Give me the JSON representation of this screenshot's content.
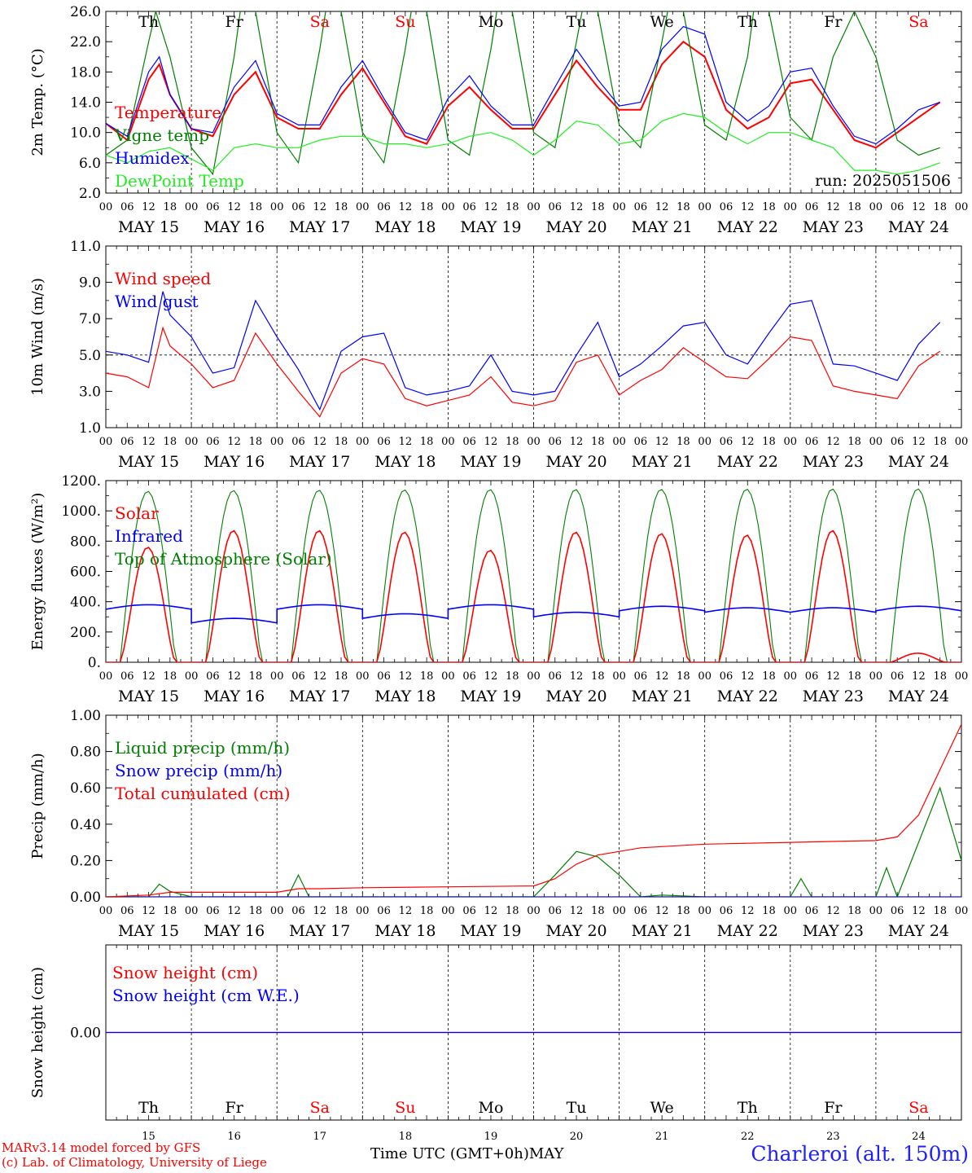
{
  "location": "Charleroi (alt. 150m)",
  "credits": [
    "MARv3.14 model forced by GFS",
    "(c) Lab. of Climatology, University of Liege"
  ],
  "time_axis": {
    "title": "Time UTC (GMT+0h)",
    "month": "MAY",
    "hour_labels": [
      "00",
      "06",
      "12",
      "18"
    ],
    "day_dates": [
      "MAY 15",
      "MAY 16",
      "MAY 17",
      "MAY 18",
      "MAY 19",
      "MAY 20",
      "MAY 21",
      "MAY 22",
      "MAY 23",
      "MAY 24"
    ],
    "day_names": [
      "Th",
      "Fr",
      "Sa",
      "Su",
      "Mo",
      "Tu",
      "We",
      "Th",
      "Fr",
      "Sa"
    ],
    "day_numbers": [
      "15",
      "16",
      "17",
      "18",
      "19",
      "20",
      "21",
      "22",
      "23",
      "24"
    ],
    "weekend_color": "#ff0000"
  },
  "chart_data": [
    {
      "type": "line",
      "ylabel": "2m Temp. (°C)",
      "ylim": [
        2,
        26
      ],
      "yticks": [
        "2.0",
        "6.0",
        "10.0",
        "14.0",
        "18.0",
        "22.0",
        "26.0"
      ],
      "run_label": "run: 2025051506",
      "x_unit": "hours since May 15 00 UTC",
      "series": [
        {
          "name": "Temperature",
          "color": "#ff0000",
          "x": [
            0,
            6,
            12,
            15,
            18,
            24,
            30,
            36,
            42,
            48,
            54,
            60,
            66,
            72,
            78,
            84,
            90,
            96,
            102,
            108,
            114,
            120,
            126,
            132,
            138,
            144,
            150,
            156,
            162,
            168,
            174,
            180,
            186,
            192,
            198,
            204,
            210,
            216,
            222,
            228,
            234
          ],
          "y": [
            11.2,
            9,
            17,
            19,
            15,
            10.5,
            9.5,
            15,
            18,
            12,
            10.5,
            10.5,
            15,
            18.5,
            14,
            9.5,
            8.5,
            13.5,
            16,
            13,
            10.5,
            10.5,
            15,
            19.5,
            16,
            13,
            13,
            19,
            22,
            20,
            13,
            10.5,
            12,
            16.5,
            17,
            13,
            9,
            8,
            10,
            12,
            14
          ]
        },
        {
          "name": "Vigne temp",
          "color": "#008000",
          "x": [
            0,
            6,
            12,
            14,
            18,
            24,
            30,
            36,
            38,
            42,
            48,
            54,
            60,
            62,
            66,
            72,
            78,
            84,
            86,
            90,
            96,
            102,
            108,
            110,
            114,
            120,
            126,
            132,
            134,
            138,
            144,
            150,
            156,
            158,
            162,
            168,
            174,
            180,
            182,
            186,
            192,
            198,
            204,
            210,
            216,
            222,
            228,
            234
          ],
          "y": [
            7,
            9,
            22,
            26,
            20,
            8,
            4.5,
            20,
            27,
            26,
            10,
            6,
            21,
            27,
            26,
            10,
            6,
            21,
            27,
            26,
            9,
            7,
            21,
            27,
            26,
            10,
            8,
            22,
            27,
            26,
            11,
            8,
            22,
            27,
            26,
            11,
            9,
            20,
            27,
            26,
            12,
            9,
            20,
            26,
            20,
            9,
            7,
            8
          ]
        },
        {
          "name": "Humidex",
          "color": "#0000ff",
          "x": [
            0,
            6,
            12,
            15,
            18,
            24,
            30,
            36,
            42,
            48,
            54,
            60,
            66,
            72,
            78,
            84,
            90,
            96,
            102,
            108,
            114,
            120,
            126,
            132,
            138,
            144,
            150,
            156,
            162,
            168,
            174,
            180,
            186,
            192,
            198,
            204,
            210,
            216,
            222,
            228,
            234
          ],
          "y": [
            11.2,
            9.5,
            18,
            20,
            15,
            10.5,
            10,
            16,
            19.5,
            12.5,
            11,
            11,
            16,
            19.5,
            14.5,
            10,
            9,
            14.5,
            17.5,
            13.5,
            11,
            11,
            16,
            21,
            17,
            13.5,
            14,
            21,
            24,
            23,
            14,
            11.5,
            13.5,
            18,
            18.5,
            13.5,
            9.5,
            8.5,
            10.5,
            13,
            14
          ]
        },
        {
          "name": "DewPoint Temp",
          "color": "#22ee22",
          "x": [
            0,
            6,
            12,
            18,
            24,
            30,
            36,
            42,
            48,
            54,
            60,
            66,
            72,
            78,
            84,
            90,
            96,
            102,
            108,
            114,
            120,
            126,
            132,
            138,
            144,
            150,
            156,
            162,
            168,
            174,
            180,
            186,
            192,
            198,
            204,
            210,
            216,
            222,
            228,
            234
          ],
          "y": [
            7,
            6,
            7.5,
            8,
            6.5,
            5,
            8,
            8.5,
            8,
            8,
            9,
            9.5,
            9.5,
            8.5,
            8.5,
            8,
            8.5,
            9.5,
            10,
            9,
            7,
            9,
            11.5,
            11,
            8.5,
            9,
            11.5,
            12.5,
            12,
            10,
            8.5,
            10,
            10,
            9,
            8,
            5,
            5,
            4.5,
            5,
            6
          ]
        }
      ]
    },
    {
      "type": "line",
      "ylabel": "10m Wind (m/s)",
      "ylim": [
        1,
        11
      ],
      "yticks": [
        "1.0",
        "3.0",
        "5.0",
        "7.0",
        "9.0",
        "11.0"
      ],
      "reference_line": 5,
      "series": [
        {
          "name": "Wind speed",
          "color": "#ff0000",
          "x": [
            0,
            6,
            12,
            16,
            18,
            24,
            30,
            36,
            42,
            48,
            54,
            60,
            66,
            72,
            78,
            84,
            90,
            96,
            102,
            108,
            114,
            120,
            126,
            132,
            138,
            144,
            150,
            156,
            162,
            168,
            174,
            180,
            186,
            192,
            198,
            204,
            210,
            216,
            222,
            228,
            234
          ],
          "y": [
            4,
            3.8,
            3.2,
            6.5,
            5.5,
            4.5,
            3.2,
            3.6,
            6.2,
            4.5,
            3,
            1.6,
            4,
            4.8,
            4.5,
            2.6,
            2.2,
            2.5,
            2.8,
            3.8,
            2.4,
            2.2,
            2.5,
            4.6,
            5,
            2.8,
            3.6,
            4.2,
            5.4,
            4.6,
            3.8,
            3.7,
            4.8,
            6,
            5.8,
            3.3,
            3,
            2.8,
            2.6,
            4.4,
            5.2
          ]
        },
        {
          "name": "Wind gust",
          "color": "#0000ff",
          "x": [
            0,
            6,
            12,
            16,
            18,
            24,
            30,
            36,
            42,
            48,
            54,
            60,
            66,
            72,
            78,
            84,
            90,
            96,
            102,
            108,
            114,
            120,
            126,
            132,
            138,
            144,
            150,
            156,
            162,
            168,
            174,
            180,
            186,
            192,
            198,
            204,
            210,
            216,
            222,
            228,
            234
          ],
          "y": [
            5.2,
            5,
            4.6,
            8.5,
            7.2,
            6,
            4,
            4.3,
            8,
            6,
            4.2,
            2,
            5.2,
            6,
            6.2,
            3.2,
            2.8,
            3,
            3.3,
            5,
            3,
            2.8,
            3,
            5,
            6.8,
            3.8,
            4.5,
            5.5,
            6.6,
            6.8,
            5,
            4.5,
            6.2,
            7.8,
            8,
            4.5,
            4.4,
            4,
            3.6,
            5.6,
            6.8
          ]
        }
      ]
    },
    {
      "type": "line",
      "ylabel": "Energy fluxes (W/m²)",
      "ylim": [
        0,
        1200
      ],
      "yticks": [
        "0.",
        "200.",
        "400.",
        "600.",
        "800.",
        "1000.",
        "1200."
      ],
      "series": [
        {
          "name": "Solar",
          "color": "#ff0000"
        },
        {
          "name": "Infrared",
          "color": "#0000ff"
        },
        {
          "name": "Top of Atmosphere (Solar)",
          "color": "#008000"
        }
      ],
      "solar_peaks": [
        760,
        870,
        870,
        860,
        740,
        860,
        850,
        840,
        870,
        60
      ],
      "toa_peaks": [
        1130,
        1135,
        1137,
        1139,
        1141,
        1142,
        1143,
        1144,
        1145,
        1146
      ],
      "infrared_levels": [
        350,
        260,
        350,
        290,
        350,
        300,
        340,
        330,
        330,
        340
      ]
    },
    {
      "type": "line",
      "ylabel": "Precip (mm/h)",
      "ylim": [
        0,
        1
      ],
      "yticks": [
        "0.00",
        "0.20",
        "0.40",
        "0.60",
        "0.80",
        "1.00"
      ],
      "series": [
        {
          "name": "Liquid precip (mm/h)",
          "color": "#008000",
          "x": [
            0,
            12,
            15,
            18,
            24,
            48,
            51,
            54,
            57,
            60,
            96,
            120,
            126,
            132,
            138,
            144,
            150,
            156,
            168,
            192,
            195,
            198,
            216,
            219,
            222,
            228,
            234,
            240
          ],
          "y": [
            0,
            0,
            0.07,
            0.03,
            0,
            0,
            0,
            0.12,
            0,
            0,
            0,
            0,
            0.12,
            0.25,
            0.22,
            0.12,
            0,
            0.01,
            0,
            0,
            0.1,
            0,
            0,
            0.16,
            0,
            0.3,
            0.6,
            0.2
          ]
        },
        {
          "name": "Snow precip (mm/h)",
          "color": "#0000ff",
          "x": [
            0,
            240
          ],
          "y": [
            0,
            0
          ]
        },
        {
          "name": "Total cumulated (cm)",
          "color": "#ff0000",
          "x": [
            0,
            12,
            18,
            24,
            48,
            54,
            60,
            72,
            96,
            120,
            126,
            132,
            138,
            144,
            150,
            168,
            192,
            216,
            222,
            228,
            234,
            240
          ],
          "y": [
            0,
            0.01,
            0.025,
            0.025,
            0.025,
            0.045,
            0.045,
            0.05,
            0.055,
            0.06,
            0.1,
            0.18,
            0.23,
            0.25,
            0.27,
            0.29,
            0.3,
            0.31,
            0.33,
            0.45,
            0.7,
            0.95
          ]
        }
      ]
    },
    {
      "type": "line",
      "ylabel": "Snow height (cm)",
      "yticks": [
        "0.00"
      ],
      "series": [
        {
          "name": "Snow height (cm)",
          "color": "#ff0000",
          "x": [
            0,
            240
          ],
          "y": [
            0,
            0
          ]
        },
        {
          "name": "Snow height (cm W.E.)",
          "color": "#0000ff",
          "x": [
            0,
            240
          ],
          "y": [
            0,
            0
          ]
        }
      ]
    }
  ]
}
